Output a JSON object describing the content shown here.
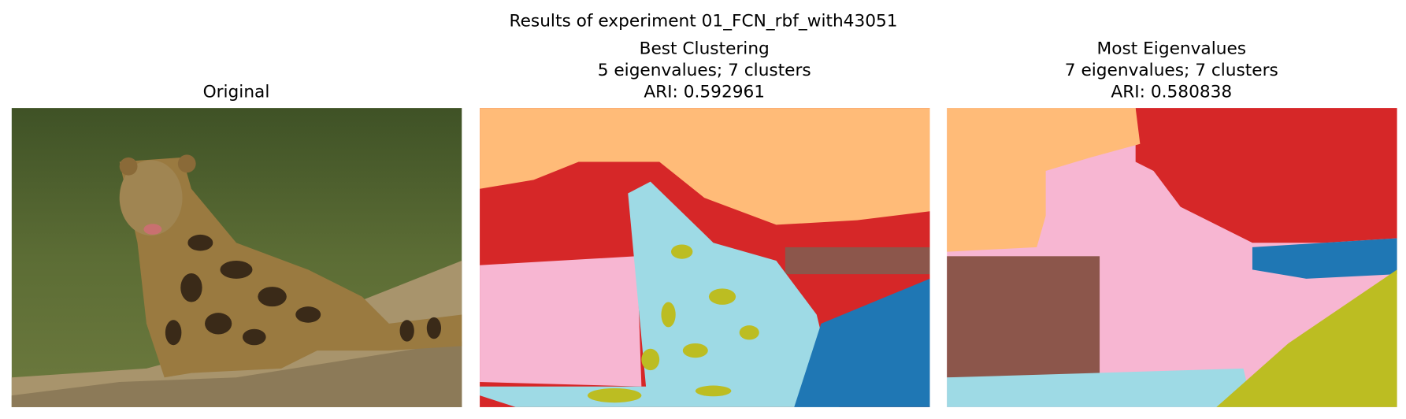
{
  "figure": {
    "title": "Results of experiment 01_FCN_rbf_with43051",
    "panels": [
      {
        "title": [
          "Original"
        ]
      },
      {
        "title": [
          "Best Clustering",
          "5 eigenvalues; 7 clusters",
          "ARI: 0.592961"
        ]
      },
      {
        "title": [
          "Most Eigenvalues",
          "7 eigenvalues; 7 clusters",
          "ARI: 0.580838"
        ]
      }
    ]
  }
}
